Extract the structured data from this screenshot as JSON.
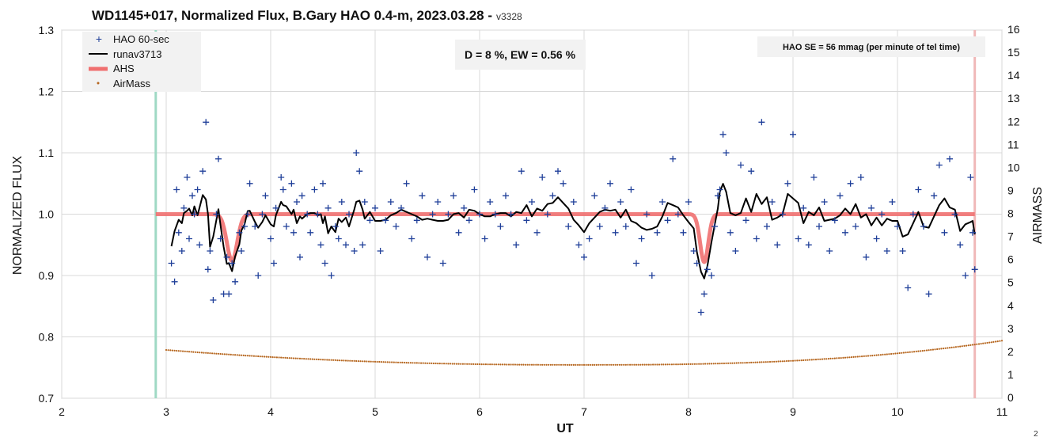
{
  "chart_data": {
    "type": "scatter",
    "title": "WD1145+017, Normalized Flux, B.Gary HAO 0.4-m, 2023.03.28 -",
    "version": "v3328",
    "xlabel": "UT",
    "ylabel_left": "NORMALIZED FLUX",
    "ylabel_right": "AIRMASS",
    "xlim": [
      2,
      11
    ],
    "ylim_left": [
      0.7,
      1.3
    ],
    "ylim_right": [
      0,
      16
    ],
    "x_ticks": [
      "2",
      "3",
      "4",
      "5",
      "6",
      "7",
      "8",
      "9",
      "10",
      "11"
    ],
    "y_left_ticks": [
      "0.7",
      "0.8",
      "0.9",
      "1.0",
      "1.1",
      "1.2",
      "1.3"
    ],
    "y_right_ticks": [
      "0",
      "1",
      "2",
      "3",
      "4",
      "5",
      "6",
      "7",
      "8",
      "9",
      "10",
      "11",
      "12",
      "13",
      "14",
      "15",
      "16"
    ],
    "grid": true,
    "legend_placement": "top-left",
    "legend": [
      {
        "label": "HAO 60-sec",
        "color": "#1f3f99",
        "marker": "+"
      },
      {
        "label": "runav3713",
        "color": "#000000",
        "marker": "line"
      },
      {
        "label": "AHS",
        "color": "#f07070",
        "marker": "thick-line"
      },
      {
        "label": "AirMass",
        "color": "#b5651d",
        "marker": "dot"
      }
    ],
    "annotations": {
      "depth_box": "D = 8 %, EW = 0.56 %",
      "se_box": "HAO SE =  56 mmag (per minute of tel time)",
      "corner": "2"
    },
    "vertical_lines": [
      {
        "x": 2.9,
        "color": "#9fd9c4"
      },
      {
        "x": 10.74,
        "color": "#f0b8b8"
      }
    ],
    "ahs_model": {
      "baseline": 1.0,
      "x_start": 2.9,
      "x_end": 10.74,
      "dips": [
        {
          "center": 3.63,
          "depth": 0.076,
          "width": 0.07
        },
        {
          "center": 8.15,
          "depth": 0.078,
          "width": 0.055
        }
      ]
    },
    "airmass": {
      "x_start": 3.0,
      "x_end": 11.0,
      "min_x": 6.95,
      "min_value": 1.45,
      "start_value": 2.1,
      "end_value": 2.5
    },
    "series_points": [
      [
        3.05,
        0.92
      ],
      [
        3.08,
        0.89
      ],
      [
        3.1,
        1.04
      ],
      [
        3.12,
        0.97
      ],
      [
        3.15,
        0.94
      ],
      [
        3.17,
        1.01
      ],
      [
        3.2,
        1.06
      ],
      [
        3.22,
        0.96
      ],
      [
        3.25,
        1.03
      ],
      [
        3.27,
        1.0
      ],
      [
        3.3,
        1.04
      ],
      [
        3.32,
        0.95
      ],
      [
        3.35,
        1.07
      ],
      [
        3.38,
        1.15
      ],
      [
        3.4,
        0.91
      ],
      [
        3.42,
        0.94
      ],
      [
        3.45,
        0.86
      ],
      [
        3.48,
        1.0
      ],
      [
        3.5,
        1.09
      ],
      [
        3.52,
        0.96
      ],
      [
        3.55,
        0.87
      ],
      [
        3.58,
        0.93
      ],
      [
        3.6,
        0.87
      ],
      [
        3.63,
        0.92
      ],
      [
        3.66,
        0.89
      ],
      [
        3.7,
        0.97
      ],
      [
        3.72,
        0.94
      ],
      [
        3.75,
        0.98
      ],
      [
        3.78,
        1.0
      ],
      [
        3.8,
        1.05
      ],
      [
        3.85,
        0.98
      ],
      [
        3.88,
        0.9
      ],
      [
        3.92,
        1.0
      ],
      [
        3.95,
        1.03
      ],
      [
        4.0,
        0.96
      ],
      [
        4.03,
        0.92
      ],
      [
        4.05,
        1.01
      ],
      [
        4.1,
        1.06
      ],
      [
        4.12,
        1.04
      ],
      [
        4.15,
        0.98
      ],
      [
        4.2,
        1.05
      ],
      [
        4.22,
        0.97
      ],
      [
        4.25,
        1.02
      ],
      [
        4.28,
        0.93
      ],
      [
        4.3,
        1.03
      ],
      [
        4.35,
        1.0
      ],
      [
        4.38,
        0.97
      ],
      [
        4.42,
        1.04
      ],
      [
        4.45,
        1.0
      ],
      [
        4.48,
        0.95
      ],
      [
        4.5,
        1.05
      ],
      [
        4.52,
        0.92
      ],
      [
        4.55,
        1.01
      ],
      [
        4.58,
        0.9
      ],
      [
        4.62,
        0.98
      ],
      [
        4.65,
        0.96
      ],
      [
        4.68,
        1.02
      ],
      [
        4.72,
        0.95
      ],
      [
        4.75,
        1.0
      ],
      [
        4.8,
        0.94
      ],
      [
        4.82,
        1.1
      ],
      [
        4.85,
        1.07
      ],
      [
        4.88,
        0.95
      ],
      [
        4.9,
        1.02
      ],
      [
        4.95,
        0.99
      ],
      [
        5.0,
        1.01
      ],
      [
        5.05,
        0.94
      ],
      [
        5.1,
        0.99
      ],
      [
        5.15,
        1.02
      ],
      [
        5.2,
        0.98
      ],
      [
        5.25,
        1.01
      ],
      [
        5.3,
        1.05
      ],
      [
        5.35,
        0.96
      ],
      [
        5.4,
        0.99
      ],
      [
        5.45,
        1.03
      ],
      [
        5.5,
        0.93
      ],
      [
        5.55,
        1.0
      ],
      [
        5.6,
        1.02
      ],
      [
        5.65,
        0.92
      ],
      [
        5.7,
        1.0
      ],
      [
        5.75,
        1.03
      ],
      [
        5.8,
        0.97
      ],
      [
        5.85,
        1.01
      ],
      [
        5.9,
        0.99
      ],
      [
        5.95,
        1.04
      ],
      [
        6.0,
        1.0
      ],
      [
        6.05,
        0.96
      ],
      [
        6.1,
        1.02
      ],
      [
        6.15,
        1.0
      ],
      [
        6.2,
        0.98
      ],
      [
        6.25,
        1.03
      ],
      [
        6.3,
        1.0
      ],
      [
        6.35,
        0.95
      ],
      [
        6.4,
        1.07
      ],
      [
        6.45,
        0.99
      ],
      [
        6.5,
        1.02
      ],
      [
        6.55,
        0.97
      ],
      [
        6.6,
        1.06
      ],
      [
        6.65,
        1.0
      ],
      [
        6.7,
        1.03
      ],
      [
        6.75,
        1.07
      ],
      [
        6.8,
        1.05
      ],
      [
        6.85,
        0.98
      ],
      [
        6.9,
        1.02
      ],
      [
        6.95,
        0.95
      ],
      [
        7.0,
        0.93
      ],
      [
        7.05,
        0.96
      ],
      [
        7.1,
        1.03
      ],
      [
        7.15,
        0.98
      ],
      [
        7.2,
        1.01
      ],
      [
        7.25,
        1.05
      ],
      [
        7.3,
        0.97
      ],
      [
        7.35,
        1.02
      ],
      [
        7.4,
        0.98
      ],
      [
        7.45,
        1.04
      ],
      [
        7.5,
        0.92
      ],
      [
        7.55,
        0.96
      ],
      [
        7.6,
        1.0
      ],
      [
        7.65,
        0.9
      ],
      [
        7.7,
        0.97
      ],
      [
        7.75,
        1.02
      ],
      [
        7.8,
        0.99
      ],
      [
        7.85,
        1.09
      ],
      [
        7.9,
        1.0
      ],
      [
        7.95,
        0.97
      ],
      [
        8.0,
        1.02
      ],
      [
        8.05,
        0.94
      ],
      [
        8.08,
        0.92
      ],
      [
        8.12,
        0.84
      ],
      [
        8.15,
        0.87
      ],
      [
        8.18,
        0.91
      ],
      [
        8.22,
        0.9
      ],
      [
        8.25,
        0.98
      ],
      [
        8.28,
        1.03
      ],
      [
        8.3,
        1.04
      ],
      [
        8.33,
        1.13
      ],
      [
        8.36,
        1.1
      ],
      [
        8.4,
        0.97
      ],
      [
        8.45,
        0.94
      ],
      [
        8.5,
        1.08
      ],
      [
        8.55,
        0.99
      ],
      [
        8.6,
        1.07
      ],
      [
        8.65,
        0.96
      ],
      [
        8.7,
        1.15
      ],
      [
        8.75,
        0.98
      ],
      [
        8.8,
        1.02
      ],
      [
        8.85,
        0.95
      ],
      [
        8.9,
        1.0
      ],
      [
        8.95,
        1.05
      ],
      [
        9.0,
        1.13
      ],
      [
        9.05,
        0.96
      ],
      [
        9.1,
        1.01
      ],
      [
        9.15,
        0.95
      ],
      [
        9.2,
        1.06
      ],
      [
        9.25,
        0.98
      ],
      [
        9.3,
        1.02
      ],
      [
        9.35,
        0.94
      ],
      [
        9.4,
        0.99
      ],
      [
        9.45,
        1.03
      ],
      [
        9.5,
        0.97
      ],
      [
        9.55,
        1.05
      ],
      [
        9.6,
        0.98
      ],
      [
        9.65,
        1.06
      ],
      [
        9.7,
        0.93
      ],
      [
        9.75,
        1.01
      ],
      [
        9.8,
        0.96
      ],
      [
        9.85,
        1.0
      ],
      [
        9.9,
        0.94
      ],
      [
        9.95,
        1.02
      ],
      [
        10.0,
        0.98
      ],
      [
        10.05,
        0.94
      ],
      [
        10.1,
        0.88
      ],
      [
        10.15,
        1.0
      ],
      [
        10.2,
        1.04
      ],
      [
        10.25,
        0.98
      ],
      [
        10.3,
        0.87
      ],
      [
        10.35,
        1.03
      ],
      [
        10.4,
        1.08
      ],
      [
        10.45,
        0.97
      ],
      [
        10.5,
        1.09
      ],
      [
        10.55,
        1.0
      ],
      [
        10.6,
        0.95
      ],
      [
        10.65,
        0.9
      ],
      [
        10.7,
        1.06
      ],
      [
        10.72,
        0.97
      ],
      [
        10.74,
        0.91
      ]
    ]
  }
}
